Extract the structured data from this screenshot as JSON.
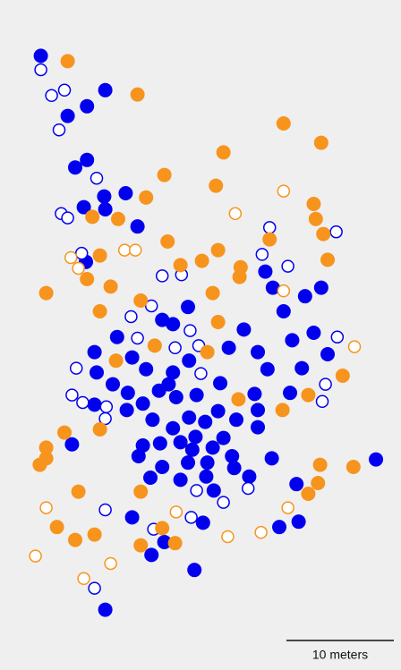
{
  "chart_data": {
    "type": "scatter",
    "xlim": [
      0,
      37.33
    ],
    "ylim": [
      62.42,
      0
    ],
    "scale_bar": {
      "length": 10,
      "label": "10 meters"
    },
    "series": [
      {
        "color": "#0000ee",
        "filled": true,
        "x": [
          3.8,
          9.8,
          8.1,
          6.3,
          7.0,
          8.1,
          11.7,
          9.7,
          7.8,
          9.8,
          12.8,
          8.0,
          24.7,
          25.4,
          29.9,
          28.4,
          17.5,
          26.4,
          15.1,
          16.1,
          22.7,
          10.9,
          29.2,
          27.2,
          8.8,
          21.3,
          12.3,
          24.0,
          30.5,
          17.6,
          13.6,
          9.0,
          24.9,
          28.1,
          16.1,
          10.5,
          15.7,
          20.5,
          14.8,
          11.9,
          18.3,
          16.4,
          23.7,
          27.0,
          13.3,
          8.8,
          20.3,
          24.0,
          17.6,
          11.8,
          14.2,
          22.0,
          19.1,
          24.0,
          16.1,
          20.8,
          6.7,
          14.9,
          13.3,
          18.2,
          16.8,
          19.8,
          17.9,
          12.9,
          25.3,
          21.6,
          35.0,
          17.5,
          19.3,
          15.1,
          21.8,
          14.0,
          23.2,
          19.2,
          16.8,
          27.6,
          19.9,
          12.3,
          18.9,
          26.0,
          27.8,
          15.3,
          14.1,
          18.1,
          9.8
        ],
        "values": [
          5.2,
          8.4,
          9.9,
          10.8,
          15.6,
          14.9,
          18.0,
          18.3,
          19.3,
          19.5,
          21.1,
          24.4,
          25.3,
          26.8,
          26.8,
          27.6,
          28.6,
          29.0,
          29.8,
          30.2,
          30.7,
          31.4,
          31.0,
          31.7,
          32.8,
          32.4,
          33.3,
          32.8,
          33.0,
          33.6,
          34.4,
          34.7,
          34.4,
          34.3,
          34.7,
          35.8,
          35.8,
          35.7,
          36.4,
          36.6,
          36.8,
          37.0,
          36.7,
          36.6,
          37.6,
          37.7,
          38.3,
          38.2,
          38.9,
          38.2,
          39.1,
          39.1,
          39.3,
          39.8,
          39.9,
          40.8,
          41.4,
          41.3,
          41.5,
          40.7,
          41.2,
          41.7,
          41.9,
          42.5,
          42.7,
          42.5,
          42.8,
          43.1,
          43.1,
          43.5,
          43.6,
          44.5,
          44.4,
          44.4,
          44.7,
          45.1,
          45.7,
          48.2,
          48.7,
          49.1,
          48.6,
          50.5,
          51.7,
          53.1,
          56.8
        ]
      },
      {
        "color": "#0000ee",
        "filled": false,
        "x": [
          3.8,
          4.8,
          6.0,
          5.5,
          9.0,
          5.7,
          6.3,
          25.1,
          31.3,
          7.6,
          24.4,
          26.8,
          15.1,
          16.9,
          14.1,
          12.2,
          17.7,
          12.8,
          31.4,
          16.3,
          18.5,
          7.1,
          18.7,
          30.3,
          6.7,
          7.7,
          30.0,
          9.9,
          9.8,
          23.1,
          18.3,
          20.8,
          9.8,
          17.8,
          14.3,
          8.8
        ],
        "values": [
          6.5,
          8.9,
          8.4,
          12.1,
          16.6,
          19.9,
          20.3,
          21.2,
          21.6,
          23.6,
          23.7,
          24.8,
          25.7,
          25.6,
          28.5,
          29.5,
          30.8,
          31.5,
          31.4,
          32.4,
          32.2,
          34.3,
          34.8,
          35.8,
          36.8,
          37.5,
          37.4,
          37.9,
          39.0,
          45.5,
          45.7,
          46.8,
          47.5,
          48.2,
          49.3,
          54.8
        ]
      },
      {
        "color": "#f7941d",
        "filled": true,
        "x": [
          6.3,
          12.8,
          26.4,
          29.9,
          20.8,
          15.3,
          20.1,
          13.6,
          29.2,
          8.6,
          11.0,
          29.4,
          30.1,
          15.6,
          25.1,
          20.3,
          9.3,
          30.5,
          18.8,
          16.8,
          22.4,
          8.1,
          22.3,
          10.3,
          4.3,
          19.8,
          13.1,
          9.3,
          20.3,
          14.4,
          19.3,
          10.8,
          31.9,
          28.7,
          22.2,
          26.3,
          9.3,
          6.0,
          4.3,
          3.7,
          4.3,
          29.8,
          32.9,
          29.6,
          7.3,
          13.1,
          28.7,
          5.3,
          8.8,
          7.0,
          15.1,
          16.3,
          13.1
        ],
        "values": [
          5.7,
          8.8,
          11.5,
          13.3,
          14.2,
          16.3,
          17.3,
          18.4,
          19.0,
          20.2,
          20.4,
          20.4,
          21.8,
          22.5,
          22.3,
          23.3,
          23.8,
          24.2,
          24.3,
          24.7,
          24.9,
          26.0,
          25.8,
          26.7,
          27.3,
          27.3,
          28.0,
          29.0,
          30.0,
          32.2,
          32.8,
          33.6,
          35.0,
          36.8,
          37.2,
          38.2,
          40.0,
          40.3,
          41.7,
          43.3,
          42.7,
          43.3,
          43.5,
          45.0,
          45.8,
          45.8,
          46.0,
          49.1,
          49.8,
          50.3,
          49.2,
          50.6,
          50.8
        ]
      },
      {
        "color": "#f7941d",
        "filled": false,
        "x": [
          26.4,
          21.9,
          11.6,
          12.6,
          6.6,
          7.3,
          26.4,
          33.0,
          4.3,
          26.8,
          16.4,
          24.3,
          21.2,
          3.3,
          10.3,
          7.8
        ],
        "values": [
          17.8,
          19.9,
          23.3,
          23.3,
          24.0,
          25.0,
          27.1,
          32.3,
          47.3,
          47.3,
          47.7,
          49.6,
          50.0,
          51.8,
          52.5,
          53.9
        ]
      }
    ]
  }
}
